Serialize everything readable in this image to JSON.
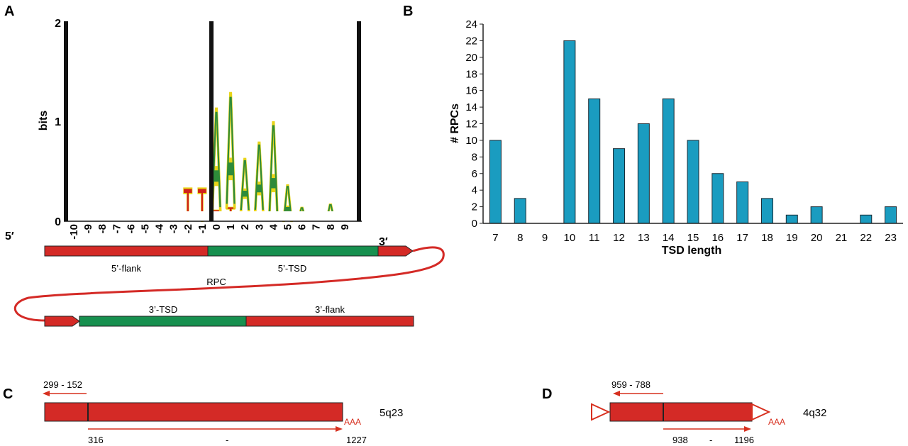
{
  "panels": {
    "a": "A",
    "b": "B",
    "c": "C",
    "d": "D"
  },
  "logo": {
    "y_ticks": [
      "0",
      "1",
      "2"
    ],
    "y_axis_label": "bits",
    "x_ticks": [
      "-10",
      "-9",
      "-8",
      "-7",
      "-6",
      "-5",
      "-4",
      "-3",
      "-2",
      "-1",
      "0",
      "1",
      "2",
      "3",
      "4",
      "5",
      "6",
      "7",
      "8",
      "9"
    ],
    "end_5": "5′",
    "end_3": "3′",
    "letters": [
      {
        "char": "T",
        "pos": 8,
        "bits": 0.35,
        "color": "#d0211b"
      },
      {
        "char": "T",
        "pos": 9,
        "bits": 0.35,
        "color": "#d0211b"
      },
      {
        "char": "A",
        "pos": 10,
        "bits": 1.05,
        "color": "#2e8b3a"
      },
      {
        "char": "A",
        "pos": 11,
        "bits": 1.18,
        "color": "#2e8b3a"
      },
      {
        "char": "A",
        "pos": 12,
        "bits": 0.55,
        "color": "#2e8b3a"
      },
      {
        "char": "A",
        "pos": 13,
        "bits": 0.72,
        "color": "#2e8b3a"
      },
      {
        "char": "A",
        "pos": 14,
        "bits": 0.95,
        "color": "#2e8b3a"
      },
      {
        "char": "A",
        "pos": 15,
        "bits": 0.38,
        "color": "#2e8b3a"
      },
      {
        "char": "A",
        "pos": 16,
        "bits": 0.15,
        "color": "#2e8b3a"
      },
      {
        "char": "A",
        "pos": 18,
        "bits": 0.18,
        "color": "#2e8b3a"
      },
      {
        "char": "T",
        "pos": 10,
        "bits": 0.12,
        "color": "#d0211b"
      },
      {
        "char": "T",
        "pos": 11,
        "bits": 0.15,
        "color": "#d0211b"
      },
      {
        "char": "T",
        "pos": 12,
        "bits": 0.1,
        "color": "#d0211b"
      },
      {
        "char": "T",
        "pos": 13,
        "bits": 0.1,
        "color": "#d0211b"
      },
      {
        "char": "T",
        "pos": 14,
        "bits": 0.08,
        "color": "#d0211b"
      }
    ]
  },
  "diagram_a": {
    "flank5": "5’-flank",
    "tsd5": "5’-TSD",
    "rpc": "RPC",
    "tsd3": "3’-TSD",
    "flank3": "3’-flank"
  },
  "chart_data": {
    "type": "bar",
    "categories": [
      "7",
      "8",
      "9",
      "10",
      "11",
      "12",
      "13",
      "14",
      "15",
      "16",
      "17",
      "18",
      "19",
      "20",
      "21",
      "22",
      "23"
    ],
    "values": [
      10,
      3,
      0,
      22,
      15,
      9,
      12,
      15,
      10,
      6,
      5,
      3,
      1,
      2,
      0,
      1,
      2
    ],
    "xlabel": "TSD length",
    "ylabel": "# RPCs",
    "ylim": [
      0,
      24
    ],
    "y_ticks": [
      "0",
      "2",
      "4",
      "6",
      "8",
      "10",
      "12",
      "14",
      "16",
      "18",
      "20",
      "22",
      "24"
    ],
    "bar_color": "#1a9cc0",
    "grid": false
  },
  "diagram_c": {
    "top_range": "299 - 152",
    "bottom_start": "316",
    "bottom_dash": "-",
    "bottom_end": "1227",
    "tail": "AAA",
    "locus": "5q23"
  },
  "diagram_d": {
    "top_range": "959   - 788",
    "bottom_start": "938",
    "bottom_dash": "-",
    "bottom_end": "1196",
    "tail": "AAA",
    "locus": "4q32"
  },
  "colors": {
    "red": "#d42a26",
    "green": "#17904f",
    "arrow": "#d7301f"
  }
}
